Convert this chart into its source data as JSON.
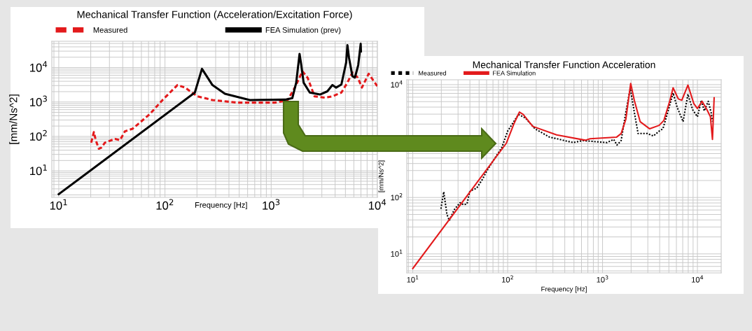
{
  "chart_data": [
    {
      "type": "line",
      "title": "Mechanical Transfer Function (Acceleration/Excitation Force)",
      "xlabel": "Frequency [Hz]",
      "ylabel": "[mm/Ns^2]",
      "log": "xy",
      "grid": true,
      "legend": "top",
      "xlim": [
        8.6,
        10000
      ],
      "ylim": [
        1.7,
        58000
      ],
      "xticks": [
        {
          "value": 10,
          "label": "10$^{1}$"
        },
        {
          "value": 100,
          "label": "10$^{2}$"
        },
        {
          "value": 1000,
          "label": "10$^{3}$"
        },
        {
          "value": 10000,
          "label": "10$^{4}$"
        }
      ],
      "yticks": [
        {
          "value": 10,
          "label": "10$^{1}$"
        },
        {
          "value": 100,
          "label": "10$^{2}$"
        },
        {
          "value": 1000,
          "label": "10$^{3}$"
        },
        {
          "value": 10000,
          "label": "10$^{4}$"
        }
      ],
      "series": [
        {
          "name": "Measured",
          "color": "#e31a1c",
          "line_style": "dashed",
          "x": [
            20.2,
            21.4,
            22.3,
            23.8,
            25.1,
            27.2,
            33.8,
            37.7,
            42,
            49.5,
            58,
            72.3,
            94.8,
            131,
            154,
            202,
            280,
            480,
            630,
            1080,
            1420,
            1670,
            1970,
            2200,
            2560,
            3200,
            3770,
            4580,
            5220,
            5820,
            6530,
            7150,
            8280,
            10000
          ],
          "values": [
            66,
            134,
            78,
            44,
            47,
            66,
            85,
            78,
            141,
            167,
            252,
            450,
            1140,
            3100,
            2630,
            1460,
            1140,
            960,
            960,
            960,
            1100,
            2630,
            7800,
            5120,
            1460,
            1340,
            1460,
            1880,
            3650,
            7150,
            5120,
            2630,
            6600,
            2850
          ]
        },
        {
          "name": "FEA Simulation (prev)",
          "color": "#000000",
          "line_style": "solid",
          "x": [
            10,
            191,
            223,
            280,
            367,
            630,
            780,
            1350,
            1580,
            1720,
            1850,
            1920,
            2020,
            2310,
            2880,
            3380,
            3770,
            4090,
            4580,
            5080,
            5220,
            5400,
            5820,
            6140,
            6600,
            6960,
            7000
          ],
          "values": [
            2.1,
            1880,
            9200,
            3100,
            1730,
            1140,
            1150,
            1170,
            1290,
            3650,
            25000,
            11800,
            3650,
            1880,
            1650,
            2040,
            3100,
            2620,
            3220,
            14000,
            45000,
            19500,
            5600,
            5120,
            11800,
            49000,
            29500
          ]
        }
      ]
    },
    {
      "type": "line",
      "title": "Mechanical Transfer Function Acceleration",
      "xlabel": "Frequency [Hz]",
      "ylabel": "[mm/Ns^2]",
      "log": "xy",
      "grid": true,
      "legend": "top left",
      "xlim": [
        8.65,
        17800
      ],
      "ylim": [
        4.6,
        12200
      ],
      "xticks": [
        {
          "value": 10,
          "label": "10$^{1}$"
        },
        {
          "value": 100,
          "label": "10$^{2}$"
        },
        {
          "value": 1000,
          "label": "10$^{3}$"
        },
        {
          "value": 10000,
          "label": "10$^{4}$"
        }
      ],
      "yticks": [
        {
          "value": 10,
          "label": "10$^{1}$"
        },
        {
          "value": 100,
          "label": "10$^{2}$"
        },
        {
          "value": 10000,
          "label": "10$^{4}$"
        }
      ],
      "series": [
        {
          "name": "Measured",
          "color": "#000000",
          "line_style": "dotted",
          "x": [
            19.8,
            21.2,
            22.9,
            24.3,
            27.2,
            31.5,
            34.3,
            37.3,
            39.7,
            43.2,
            47.1,
            54.6,
            59.6,
            68.8,
            86.6,
            100,
            130,
            154,
            194,
            275,
            490,
            620,
            1110,
            1310,
            1420,
            1570,
            1760,
            1960,
            2160,
            2370,
            2970,
            3430,
            3950,
            4330,
            4710,
            5540,
            6120,
            7060,
            7940,
            8900,
            10000,
            11000,
            11800,
            13000,
            14000,
            14400
          ],
          "values": [
            63,
            126,
            50,
            39,
            60,
            81,
            74,
            77,
            126,
            138,
            146,
            214,
            286,
            423,
            760,
            1500,
            2960,
            2560,
            1650,
            1180,
            940,
            1020,
            940,
            1070,
            850,
            1020,
            3260,
            8640,
            3260,
            1360,
            1360,
            1230,
            1500,
            1650,
            2680,
            7130,
            3960,
            2210,
            6770,
            3600,
            2700,
            5300,
            3420,
            5060,
            3110,
            2220
          ]
        },
        {
          "name": "FEA Simulation",
          "color": "#e31a1c",
          "line_style": "solid",
          "x": [
            10,
            97,
            116,
            133,
            146,
            184,
            328,
            658,
            740,
            1400,
            1570,
            1760,
            1980,
            2160,
            2490,
            3140,
            3950,
            4430,
            5140,
            5540,
            6290,
            6850,
            7940,
            9170,
            10000,
            11200,
            12600,
            13700,
            14400,
            15000
          ],
          "values": [
            5.5,
            920,
            2000,
            3260,
            2960,
            1820,
            1290,
            1035,
            1100,
            1170,
            1360,
            2440,
            10500,
            5300,
            2210,
            1650,
            1900,
            2320,
            5300,
            8800,
            5580,
            5300,
            9800,
            4590,
            3780,
            5060,
            3600,
            2700,
            1070,
            5850
          ]
        }
      ]
    }
  ]
}
